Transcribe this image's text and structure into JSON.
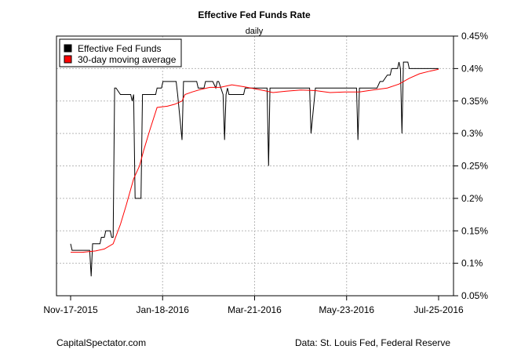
{
  "chart_data": {
    "type": "line",
    "title": "Effective Fed Funds Rate",
    "subtitle": "daily",
    "xlabel": "",
    "ylabel": "",
    "x_tick_labels": [
      "Nov-17-2015",
      "Jan-18-2016",
      "Mar-21-2016",
      "May-23-2016",
      "Jul-25-2016"
    ],
    "y_tick_labels": [
      "0.05%",
      "0.1%",
      "0.15%",
      "0.2%",
      "0.25%",
      "0.3%",
      "0.35%",
      "0.4%",
      "0.45%"
    ],
    "x_range": [
      "2015-11-17",
      "2016-07-25"
    ],
    "ylim": [
      0.05,
      0.45
    ],
    "y_ticks": [
      0.05,
      0.1,
      0.15,
      0.2,
      0.25,
      0.3,
      0.35,
      0.4,
      0.45
    ],
    "grid": true,
    "legend": {
      "position": "top-left",
      "entries": [
        {
          "name": "Effective Fed Funds",
          "color": "#000000"
        },
        {
          "name": "30-day moving average",
          "color": "#ff0000"
        }
      ]
    },
    "series": [
      {
        "name": "Effective Fed Funds",
        "color": "#000000",
        "points": [
          [
            "2015-11-17",
            0.13
          ],
          [
            "2015-11-18",
            0.12
          ],
          [
            "2015-11-20",
            0.12
          ],
          [
            "2015-11-24",
            0.12
          ],
          [
            "2015-11-27",
            0.12
          ],
          [
            "2015-11-30",
            0.12
          ],
          [
            "2015-12-01",
            0.08
          ],
          [
            "2015-12-02",
            0.13
          ],
          [
            "2015-12-04",
            0.13
          ],
          [
            "2015-12-07",
            0.13
          ],
          [
            "2015-12-08",
            0.14
          ],
          [
            "2015-12-10",
            0.14
          ],
          [
            "2015-12-11",
            0.15
          ],
          [
            "2015-12-14",
            0.15
          ],
          [
            "2015-12-15",
            0.14
          ],
          [
            "2015-12-16",
            0.14
          ],
          [
            "2015-12-17",
            0.37
          ],
          [
            "2015-12-18",
            0.37
          ],
          [
            "2015-12-21",
            0.36
          ],
          [
            "2015-12-23",
            0.36
          ],
          [
            "2015-12-24",
            0.36
          ],
          [
            "2015-12-28",
            0.36
          ],
          [
            "2015-12-29",
            0.35
          ],
          [
            "2015-12-30",
            0.36
          ],
          [
            "2015-12-31",
            0.2
          ],
          [
            "2016-01-04",
            0.2
          ],
          [
            "2016-01-05",
            0.36
          ],
          [
            "2016-01-07",
            0.36
          ],
          [
            "2016-01-11",
            0.36
          ],
          [
            "2016-01-14",
            0.36
          ],
          [
            "2016-01-15",
            0.37
          ],
          [
            "2016-01-18",
            0.37
          ],
          [
            "2016-01-19",
            0.38
          ],
          [
            "2016-01-22",
            0.38
          ],
          [
            "2016-01-25",
            0.38
          ],
          [
            "2016-01-28",
            0.38
          ],
          [
            "2016-01-29",
            0.36
          ],
          [
            "2016-02-01",
            0.29
          ],
          [
            "2016-02-02",
            0.38
          ],
          [
            "2016-02-05",
            0.38
          ],
          [
            "2016-02-08",
            0.38
          ],
          [
            "2016-02-11",
            0.38
          ],
          [
            "2016-02-12",
            0.37
          ],
          [
            "2016-02-16",
            0.37
          ],
          [
            "2016-02-17",
            0.38
          ],
          [
            "2016-02-19",
            0.38
          ],
          [
            "2016-02-22",
            0.38
          ],
          [
            "2016-02-24",
            0.37
          ],
          [
            "2016-02-25",
            0.38
          ],
          [
            "2016-02-26",
            0.38
          ],
          [
            "2016-02-29",
            0.36
          ],
          [
            "2016-03-01",
            0.29
          ],
          [
            "2016-03-02",
            0.36
          ],
          [
            "2016-03-03",
            0.37
          ],
          [
            "2016-03-04",
            0.36
          ],
          [
            "2016-03-07",
            0.36
          ],
          [
            "2016-03-10",
            0.36
          ],
          [
            "2016-03-14",
            0.36
          ],
          [
            "2016-03-15",
            0.37
          ],
          [
            "2016-03-17",
            0.37
          ],
          [
            "2016-03-21",
            0.37
          ],
          [
            "2016-03-24",
            0.37
          ],
          [
            "2016-03-28",
            0.37
          ],
          [
            "2016-03-30",
            0.37
          ],
          [
            "2016-03-31",
            0.25
          ],
          [
            "2016-04-01",
            0.37
          ],
          [
            "2016-04-04",
            0.37
          ],
          [
            "2016-04-07",
            0.37
          ],
          [
            "2016-04-11",
            0.37
          ],
          [
            "2016-04-14",
            0.37
          ],
          [
            "2016-04-18",
            0.37
          ],
          [
            "2016-04-21",
            0.37
          ],
          [
            "2016-04-25",
            0.37
          ],
          [
            "2016-04-28",
            0.37
          ],
          [
            "2016-04-29",
            0.3
          ],
          [
            "2016-05-02",
            0.37
          ],
          [
            "2016-05-05",
            0.37
          ],
          [
            "2016-05-09",
            0.37
          ],
          [
            "2016-05-12",
            0.37
          ],
          [
            "2016-05-16",
            0.37
          ],
          [
            "2016-05-19",
            0.37
          ],
          [
            "2016-05-23",
            0.37
          ],
          [
            "2016-05-26",
            0.37
          ],
          [
            "2016-05-30",
            0.37
          ],
          [
            "2016-05-31",
            0.29
          ],
          [
            "2016-06-01",
            0.37
          ],
          [
            "2016-06-03",
            0.37
          ],
          [
            "2016-06-06",
            0.37
          ],
          [
            "2016-06-09",
            0.37
          ],
          [
            "2016-06-13",
            0.37
          ],
          [
            "2016-06-15",
            0.38
          ],
          [
            "2016-06-17",
            0.38
          ],
          [
            "2016-06-20",
            0.39
          ],
          [
            "2016-06-22",
            0.39
          ],
          [
            "2016-06-23",
            0.4
          ],
          [
            "2016-06-27",
            0.4
          ],
          [
            "2016-06-28",
            0.41
          ],
          [
            "2016-06-29",
            0.4
          ],
          [
            "2016-06-30",
            0.3
          ],
          [
            "2016-07-01",
            0.41
          ],
          [
            "2016-07-04",
            0.41
          ],
          [
            "2016-07-05",
            0.4
          ],
          [
            "2016-07-08",
            0.4
          ],
          [
            "2016-07-12",
            0.4
          ],
          [
            "2016-07-15",
            0.4
          ],
          [
            "2016-07-19",
            0.4
          ],
          [
            "2016-07-22",
            0.4
          ],
          [
            "2016-07-25",
            0.4
          ]
        ]
      },
      {
        "name": "30-day moving average",
        "color": "#ff0000",
        "points": [
          [
            "2015-11-17",
            0.117
          ],
          [
            "2015-11-25",
            0.117
          ],
          [
            "2015-12-04",
            0.119
          ],
          [
            "2015-12-10",
            0.122
          ],
          [
            "2015-12-16",
            0.13
          ],
          [
            "2015-12-21",
            0.16
          ],
          [
            "2015-12-25",
            0.19
          ],
          [
            "2015-12-30",
            0.23
          ],
          [
            "2016-01-03",
            0.25
          ],
          [
            "2016-01-06",
            0.275
          ],
          [
            "2016-01-10",
            0.305
          ],
          [
            "2016-01-15",
            0.34
          ],
          [
            "2016-01-22",
            0.342
          ],
          [
            "2016-01-27",
            0.345
          ],
          [
            "2016-02-01",
            0.35
          ],
          [
            "2016-02-03",
            0.36
          ],
          [
            "2016-02-08",
            0.364
          ],
          [
            "2016-02-14",
            0.368
          ],
          [
            "2016-02-20",
            0.371
          ],
          [
            "2016-02-27",
            0.371
          ],
          [
            "2016-03-06",
            0.375
          ],
          [
            "2016-03-14",
            0.372
          ],
          [
            "2016-03-21",
            0.369
          ],
          [
            "2016-03-28",
            0.366
          ],
          [
            "2016-04-03",
            0.363
          ],
          [
            "2016-04-12",
            0.365
          ],
          [
            "2016-04-22",
            0.367
          ],
          [
            "2016-05-02",
            0.366
          ],
          [
            "2016-05-12",
            0.363
          ],
          [
            "2016-05-22",
            0.364
          ],
          [
            "2016-06-01",
            0.364
          ],
          [
            "2016-06-10",
            0.367
          ],
          [
            "2016-06-20",
            0.37
          ],
          [
            "2016-06-28",
            0.376
          ],
          [
            "2016-07-05",
            0.385
          ],
          [
            "2016-07-12",
            0.392
          ],
          [
            "2016-07-19",
            0.396
          ],
          [
            "2016-07-25",
            0.399
          ]
        ]
      }
    ]
  },
  "footer": {
    "left": "CapitalSpectator.com",
    "right": "Data: St. Louis Fed, Federal Reserve"
  }
}
